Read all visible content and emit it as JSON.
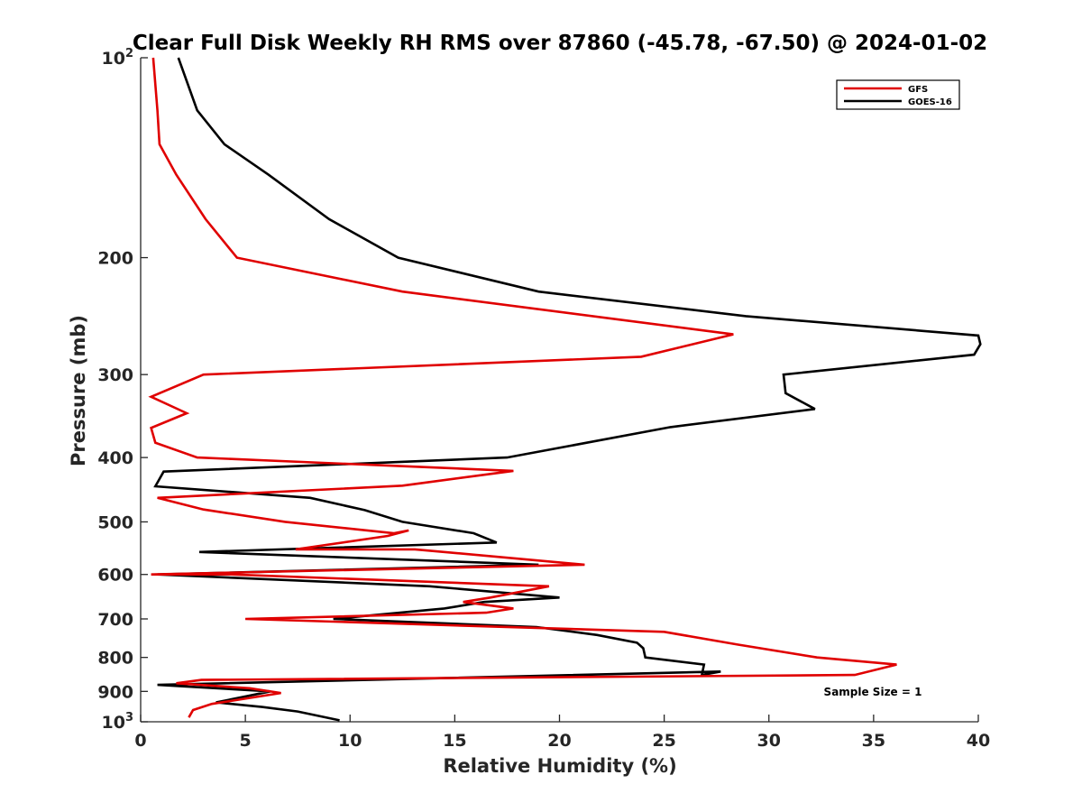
{
  "chart_data": {
    "type": "line",
    "title": "Clear Full Disk Weekly RH RMS over 87860 (-45.78, -67.50) @ 2024-01-02",
    "xlabel": "Relative Humidity (%)",
    "ylabel": "Pressure (mb)",
    "xlim": [
      0,
      40
    ],
    "ylim": [
      100,
      1000
    ],
    "y_scale": "log",
    "y_reversed": true,
    "grid": false,
    "legend_position": "top-right",
    "x_ticks": [
      "0",
      "5",
      "10",
      "15",
      "20",
      "25",
      "30",
      "35",
      "40"
    ],
    "y_ticks": [
      {
        "value": 100,
        "base": "10",
        "exp": "2"
      },
      {
        "value": 200,
        "label": "200"
      },
      {
        "value": 300,
        "label": "300"
      },
      {
        "value": 400,
        "label": "400"
      },
      {
        "value": 500,
        "label": "500"
      },
      {
        "value": 600,
        "label": "600"
      },
      {
        "value": 700,
        "label": "700"
      },
      {
        "value": 800,
        "label": "800"
      },
      {
        "value": 900,
        "label": "900"
      },
      {
        "value": 1000,
        "base": "10",
        "exp": "3"
      }
    ],
    "annotation": "Sample Size = 1",
    "series": [
      {
        "name": "GFS",
        "color": "#e00000",
        "points": [
          [
            0.6,
            100
          ],
          [
            0.8,
            120
          ],
          [
            0.9,
            135
          ],
          [
            1.7,
            150
          ],
          [
            3.1,
            175
          ],
          [
            4.6,
            200
          ],
          [
            12.5,
            225
          ],
          [
            28.3,
            261
          ],
          [
            23.9,
            282
          ],
          [
            3.0,
            300
          ],
          [
            0.5,
            324
          ],
          [
            2.2,
            343
          ],
          [
            0.5,
            361
          ],
          [
            0.7,
            380
          ],
          [
            2.7,
            400
          ],
          [
            17.8,
            419
          ],
          [
            12.5,
            441
          ],
          [
            0.8,
            460
          ],
          [
            3.0,
            479
          ],
          [
            6.9,
            500
          ],
          [
            12.1,
            520
          ],
          [
            12.8,
            515
          ],
          [
            11.8,
            525
          ],
          [
            7.4,
            550
          ],
          [
            13.1,
            550
          ],
          [
            21.2,
            580
          ],
          [
            0.5,
            600
          ],
          [
            4.3,
            600
          ],
          [
            19.5,
            625
          ],
          [
            16.7,
            650
          ],
          [
            15.4,
            660
          ],
          [
            17.8,
            675
          ],
          [
            16.5,
            685
          ],
          [
            5.0,
            700
          ],
          [
            25.0,
            732
          ],
          [
            28.5,
            765
          ],
          [
            32.3,
            800
          ],
          [
            36.1,
            820
          ],
          [
            34.1,
            850
          ],
          [
            2.9,
            865
          ],
          [
            1.7,
            875
          ],
          [
            5.2,
            890
          ],
          [
            6.7,
            905
          ],
          [
            3.4,
            940
          ],
          [
            2.5,
            960
          ],
          [
            2.3,
            985
          ]
        ]
      },
      {
        "name": "GOES-16",
        "color": "#000000",
        "points": [
          [
            1.8,
            100
          ],
          [
            2.7,
            120
          ],
          [
            4.0,
            135
          ],
          [
            6.1,
            150
          ],
          [
            9.0,
            175
          ],
          [
            12.3,
            200
          ],
          [
            19.0,
            225
          ],
          [
            28.9,
            245
          ],
          [
            40.0,
            262
          ],
          [
            40.1,
            270
          ],
          [
            39.8,
            280
          ],
          [
            30.7,
            300
          ],
          [
            30.8,
            320
          ],
          [
            32.2,
            338
          ],
          [
            25.3,
            360
          ],
          [
            21.3,
            380
          ],
          [
            17.5,
            400
          ],
          [
            1.1,
            420
          ],
          [
            0.7,
            442
          ],
          [
            8.1,
            460
          ],
          [
            10.7,
            480
          ],
          [
            12.5,
            500
          ],
          [
            15.9,
            520
          ],
          [
            17.0,
            537
          ],
          [
            2.8,
            555
          ],
          [
            19.0,
            580
          ],
          [
            0.8,
            600
          ],
          [
            13.8,
            625
          ],
          [
            20.0,
            650
          ],
          [
            16.4,
            660
          ],
          [
            14.5,
            675
          ],
          [
            9.2,
            700
          ],
          [
            18.9,
            720
          ],
          [
            21.8,
            740
          ],
          [
            23.7,
            760
          ],
          [
            24.0,
            775
          ],
          [
            24.1,
            800
          ],
          [
            26.9,
            820
          ],
          [
            26.8,
            850
          ],
          [
            27.7,
            840
          ],
          [
            0.8,
            880
          ],
          [
            6.2,
            900
          ],
          [
            3.6,
            935
          ],
          [
            5.8,
            950
          ],
          [
            7.5,
            965
          ],
          [
            9.5,
            995
          ]
        ]
      }
    ]
  }
}
